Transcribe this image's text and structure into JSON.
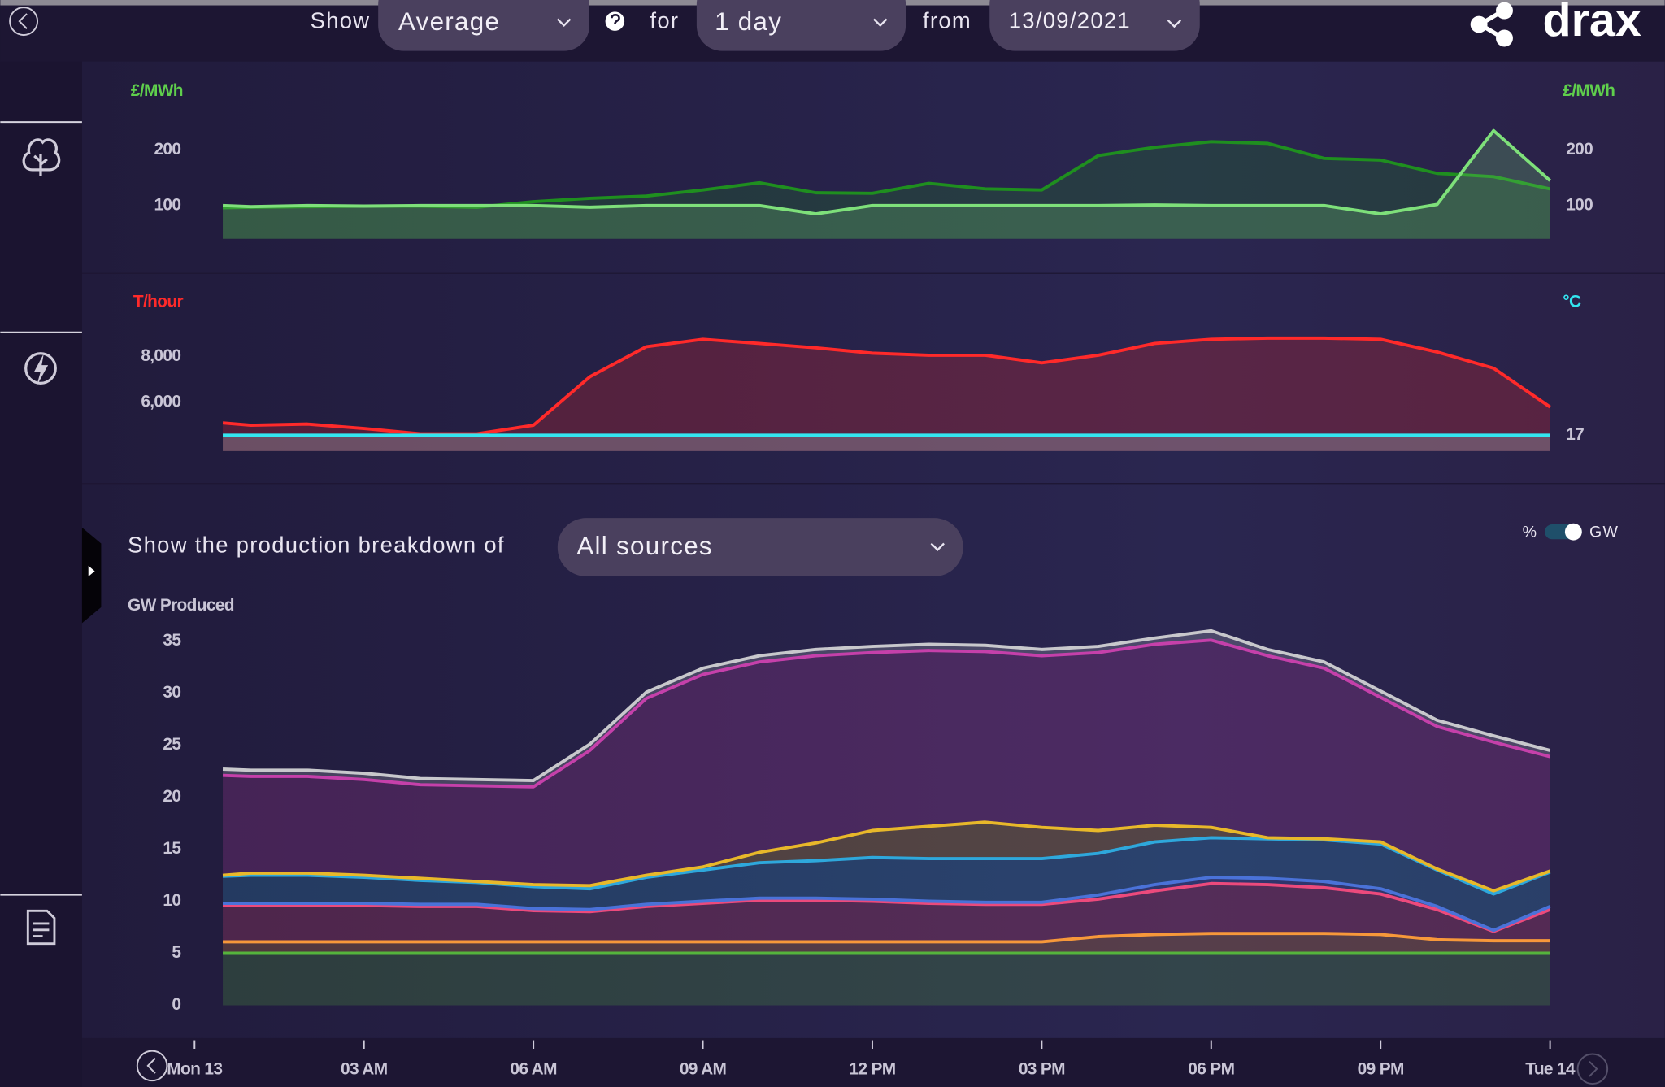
{
  "header": {
    "show_label": "Show",
    "show_value": "Average",
    "for_label": "for",
    "for_value": "1 day",
    "from_label": "from",
    "from_value": "13/09/2021",
    "brand": "drax"
  },
  "breakdown": {
    "label": "Show the production breakdown of",
    "value": "All sources",
    "toggle_left": "%",
    "toggle_right": "GW"
  },
  "chart_data": [
    {
      "type": "line",
      "y_label": "£/MWh",
      "y2_label": "£/MWh",
      "x": [
        0.5,
        1,
        2,
        3,
        4,
        5,
        6,
        7,
        8,
        9,
        10,
        11,
        12,
        13,
        14,
        15,
        16,
        17,
        18,
        19,
        20,
        21,
        22,
        23,
        24
      ],
      "xlim": [
        0,
        24
      ],
      "ylim": [
        40,
        260
      ],
      "yticks": [
        100,
        200
      ],
      "y2lim": [
        40,
        260
      ],
      "y2ticks": [
        100,
        200
      ],
      "series": [
        {
          "color": "#1f8f1f",
          "values": [
            96,
            97,
            98,
            99,
            99,
            97,
            107,
            113,
            117,
            128,
            141,
            123,
            122,
            140,
            130,
            128,
            190,
            205,
            215,
            212,
            185,
            182,
            158,
            152,
            130
          ]
        },
        {
          "color": "#7ee07a",
          "values": [
            100,
            98,
            100,
            99,
            100,
            100,
            100,
            97,
            100,
            100,
            100,
            85,
            100,
            100,
            100,
            100,
            100,
            101,
            100,
            100,
            100,
            85,
            102,
            235,
            145
          ]
        }
      ]
    },
    {
      "type": "line",
      "y_label": "T/hour",
      "y2_label": "°C",
      "x": [
        0.5,
        1,
        2,
        3,
        4,
        5,
        6,
        7,
        8,
        9,
        10,
        11,
        12,
        13,
        14,
        15,
        16,
        17,
        18,
        19,
        20,
        21,
        22,
        23,
        24
      ],
      "xlim": [
        0,
        24
      ],
      "ylim": [
        3900,
        10100
      ],
      "yticks": [
        {
          "value": 6000,
          "label": "6,000"
        },
        {
          "value": 8000,
          "label": "8,000"
        }
      ],
      "y2lim": [
        15,
        33
      ],
      "y2ticks": [
        17
      ],
      "series": [
        {
          "color": "#ff2a2a",
          "values": [
            5120,
            5020,
            5070,
            4880,
            4650,
            4650,
            5020,
            7120,
            8420,
            8740,
            8560,
            8370,
            8140,
            8050,
            8050,
            7720,
            8050,
            8560,
            8740,
            8790,
            8790,
            8740,
            8190,
            7490,
            5810
          ]
        },
        {
          "color": "#33e6f0",
          "axis": "y2",
          "values": [
            17,
            17,
            17,
            17,
            17,
            17,
            17,
            17,
            17,
            17,
            17,
            17,
            17,
            17,
            17,
            17,
            17,
            17,
            17,
            17,
            17,
            17,
            17,
            17,
            17
          ]
        }
      ]
    },
    {
      "type": "stacked_area",
      "y_label": "GW Produced",
      "x": [
        0.5,
        1,
        2,
        3,
        4,
        5,
        6,
        7,
        8,
        9,
        10,
        11,
        12,
        13,
        14,
        15,
        16,
        17,
        18,
        19,
        20,
        21,
        22,
        23,
        24
      ],
      "xlim": [
        0,
        24
      ],
      "xticks": [
        {
          "value": 0,
          "label": "Mon 13"
        },
        {
          "value": 3,
          "label": "03 AM"
        },
        {
          "value": 6,
          "label": "06 AM"
        },
        {
          "value": 9,
          "label": "09 AM"
        },
        {
          "value": 12,
          "label": "12 PM"
        },
        {
          "value": 15,
          "label": "03 PM"
        },
        {
          "value": 18,
          "label": "06 PM"
        },
        {
          "value": 21,
          "label": "09 PM"
        },
        {
          "value": 24,
          "label": "Tue 14"
        }
      ],
      "ylim": [
        0,
        35
      ],
      "yticks": [
        0,
        5,
        10,
        15,
        20,
        25,
        30,
        35
      ],
      "series": [
        {
          "color": "#55b43c",
          "values": [
            5,
            5,
            5,
            5,
            5,
            5,
            5,
            5,
            5,
            5,
            5,
            5,
            5,
            5,
            5,
            5,
            5,
            5,
            5,
            5,
            5,
            5,
            5,
            5,
            5
          ]
        },
        {
          "color": "#f7983a",
          "values": [
            1.1,
            1.1,
            1.1,
            1.1,
            1.1,
            1.1,
            1.1,
            1.1,
            1.1,
            1.1,
            1.1,
            1.1,
            1.1,
            1.1,
            1.1,
            1.1,
            1.6,
            1.8,
            1.9,
            1.9,
            1.9,
            1.8,
            1.3,
            1.2,
            1.2
          ]
        },
        {
          "color": "#ec4a7c",
          "values": [
            3.5,
            3.5,
            3.5,
            3.5,
            3.4,
            3.4,
            3.0,
            2.9,
            3.4,
            3.7,
            4.0,
            4.0,
            3.9,
            3.7,
            3.6,
            3.6,
            3.6,
            4.2,
            4.8,
            4.7,
            4.4,
            3.9,
            2.9,
            0.9,
            3.0
          ]
        },
        {
          "color": "#4a72d8",
          "values": [
            0.2,
            0.2,
            0.2,
            0.2,
            0.2,
            0.2,
            0.2,
            0.2,
            0.2,
            0.2,
            0.2,
            0.2,
            0.2,
            0.2,
            0.2,
            0.2,
            0.4,
            0.6,
            0.6,
            0.6,
            0.6,
            0.5,
            0.3,
            0.1,
            0.3
          ]
        },
        {
          "color": "#2ea8dc",
          "values": [
            2.6,
            2.7,
            2.7,
            2.5,
            2.3,
            2.1,
            2.1,
            2.0,
            2.6,
            3.0,
            3.4,
            3.6,
            4.0,
            4.1,
            4.2,
            4.2,
            4.0,
            4.1,
            3.8,
            3.8,
            4.0,
            4.3,
            3.5,
            3.5,
            3.3
          ]
        },
        {
          "color": "#e8b82a",
          "values": [
            0.1,
            0.2,
            0.2,
            0.2,
            0.2,
            0.1,
            0.2,
            0.3,
            0.2,
            0.3,
            1.0,
            1.7,
            2.6,
            3.1,
            3.5,
            3.0,
            2.2,
            1.6,
            1.0,
            0.1,
            0.1,
            0.2,
            0.1,
            0.3,
            0.1
          ]
        },
        {
          "color": "#c540aa",
          "values": [
            9.6,
            9.3,
            9.3,
            9.2,
            9.0,
            9.2,
            9.4,
            13.0,
            17.0,
            18.5,
            18.3,
            18.0,
            17.1,
            16.9,
            16.4,
            16.5,
            17.1,
            17.4,
            18.0,
            17.5,
            16.4,
            13.9,
            13.7,
            14.3,
            11.0
          ]
        },
        {
          "color": "#c8c8cc",
          "values": [
            0.6,
            0.6,
            0.6,
            0.6,
            0.6,
            0.6,
            0.6,
            0.6,
            0.6,
            0.6,
            0.6,
            0.6,
            0.6,
            0.6,
            0.6,
            0.6,
            0.6,
            0.6,
            0.9,
            0.6,
            0.6,
            0.6,
            0.6,
            0.6,
            0.6
          ]
        }
      ]
    }
  ]
}
